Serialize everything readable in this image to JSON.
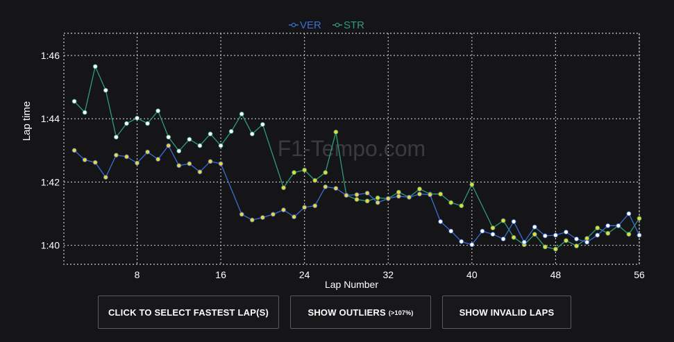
{
  "chart_data": {
    "type": "line",
    "xlabel": "Lap Number",
    "ylabel": "Lap time",
    "xlim": [
      1,
      56
    ],
    "ylim": [
      99.4,
      106.7
    ],
    "x_ticks": [
      8,
      16,
      24,
      32,
      40,
      48,
      56
    ],
    "y_ticks": [
      {
        "value": 100,
        "label": "1:40"
      },
      {
        "value": 102,
        "label": "1:42"
      },
      {
        "value": 104,
        "label": "1:44"
      },
      {
        "value": 106,
        "label": "1:46"
      }
    ],
    "grid": true,
    "legend": "top-center",
    "watermark": "F1-Tempo.com",
    "series": [
      {
        "name": "VER",
        "color": "#3b6fd6",
        "points": [
          {
            "x": 2,
            "y": 103.0,
            "c": "#f2d33a"
          },
          {
            "x": 3,
            "y": 102.7,
            "c": "#f2d33a"
          },
          {
            "x": 4,
            "y": 102.62,
            "c": "#f2d33a"
          },
          {
            "x": 5,
            "y": 102.15,
            "c": "#f2d33a"
          },
          {
            "x": 6,
            "y": 102.85,
            "c": "#f2d33a"
          },
          {
            "x": 7,
            "y": 102.8,
            "c": "#f2d33a"
          },
          {
            "x": 8,
            "y": 102.6,
            "c": "#f2d33a"
          },
          {
            "x": 9,
            "y": 102.95,
            "c": "#f2d33a"
          },
          {
            "x": 10,
            "y": 102.72,
            "c": "#f2d33a"
          },
          {
            "x": 11,
            "y": 103.15,
            "c": "#f2d33a"
          },
          {
            "x": 12,
            "y": 102.52,
            "c": "#f2d33a"
          },
          {
            "x": 13,
            "y": 102.58,
            "c": "#f2d33a"
          },
          {
            "x": 14,
            "y": 102.32,
            "c": "#f2d33a"
          },
          {
            "x": 15,
            "y": 102.65,
            "c": "#f2d33a"
          },
          {
            "x": 16,
            "y": 102.58,
            "c": "#f2d33a"
          },
          {
            "x": 18,
            "y": 100.98,
            "c": "#f2d33a"
          },
          {
            "x": 19,
            "y": 100.8,
            "c": "#f2d33a"
          },
          {
            "x": 20,
            "y": 100.88,
            "c": "#f2d33a"
          },
          {
            "x": 21,
            "y": 100.98,
            "c": "#f2d33a"
          },
          {
            "x": 22,
            "y": 101.12,
            "c": "#f2d33a"
          },
          {
            "x": 23,
            "y": 100.9,
            "c": "#f2d33a"
          },
          {
            "x": 24,
            "y": 101.2,
            "c": "#f2d33a"
          },
          {
            "x": 25,
            "y": 101.25,
            "c": "#f2d33a"
          },
          {
            "x": 26,
            "y": 101.85,
            "c": "#f2d33a"
          },
          {
            "x": 27,
            "y": 101.8,
            "c": "#f2d33a"
          },
          {
            "x": 28,
            "y": 101.58,
            "c": "#f2d33a"
          },
          {
            "x": 29,
            "y": 101.6,
            "c": "#f2d33a"
          },
          {
            "x": 30,
            "y": 101.65,
            "c": "#f2d33a"
          },
          {
            "x": 31,
            "y": 101.35,
            "c": "#f2d33a"
          },
          {
            "x": 32,
            "y": 101.48,
            "c": "#f2d33a"
          },
          {
            "x": 33,
            "y": 101.55,
            "c": "#f2d33a"
          },
          {
            "x": 34,
            "y": 101.52,
            "c": "#f2d33a"
          },
          {
            "x": 35,
            "y": 101.62,
            "c": "#f2d33a"
          },
          {
            "x": 36,
            "y": 101.6,
            "c": "#f2d33a"
          },
          {
            "x": 37,
            "y": 100.75,
            "c": "#ffffff"
          },
          {
            "x": 38,
            "y": 100.45,
            "c": "#ffffff"
          },
          {
            "x": 39,
            "y": 100.12,
            "c": "#ffffff"
          },
          {
            "x": 40,
            "y": 100.02,
            "c": "#ffffff"
          },
          {
            "x": 41,
            "y": 100.45,
            "c": "#ffffff"
          },
          {
            "x": 42,
            "y": 100.35,
            "c": "#ffffff"
          },
          {
            "x": 43,
            "y": 100.2,
            "c": "#ffffff"
          },
          {
            "x": 44,
            "y": 100.75,
            "c": "#ffffff"
          },
          {
            "x": 45,
            "y": 100.1,
            "c": "#ffffff"
          },
          {
            "x": 46,
            "y": 100.58,
            "c": "#ffffff"
          },
          {
            "x": 47,
            "y": 100.3,
            "c": "#ffffff"
          },
          {
            "x": 48,
            "y": 100.32,
            "c": "#ffffff"
          },
          {
            "x": 49,
            "y": 100.42,
            "c": "#ffffff"
          },
          {
            "x": 50,
            "y": 100.2,
            "c": "#ffffff"
          },
          {
            "x": 51,
            "y": 100.1,
            "c": "#ffffff"
          },
          {
            "x": 52,
            "y": 100.32,
            "c": "#ffffff"
          },
          {
            "x": 53,
            "y": 100.62,
            "c": "#ffffff"
          },
          {
            "x": 54,
            "y": 100.62,
            "c": "#ffffff"
          },
          {
            "x": 55,
            "y": 101.0,
            "c": "#ffffff"
          },
          {
            "x": 56,
            "y": 100.32,
            "c": "#ffffff"
          }
        ]
      },
      {
        "name": "STR",
        "color": "#2f9d78",
        "points": [
          {
            "x": 2,
            "y": 104.55,
            "c": "#ffffff"
          },
          {
            "x": 3,
            "y": 104.2,
            "c": "#ffffff"
          },
          {
            "x": 4,
            "y": 105.65,
            "c": "#ffffff"
          },
          {
            "x": 5,
            "y": 104.9,
            "c": "#ffffff"
          },
          {
            "x": 6,
            "y": 103.42,
            "c": "#ffffff"
          },
          {
            "x": 7,
            "y": 103.85,
            "c": "#ffffff"
          },
          {
            "x": 8,
            "y": 104.02,
            "c": "#ffffff"
          },
          {
            "x": 9,
            "y": 103.85,
            "c": "#ffffff"
          },
          {
            "x": 10,
            "y": 104.25,
            "c": "#ffffff"
          },
          {
            "x": 11,
            "y": 103.42,
            "c": "#ffffff"
          },
          {
            "x": 12,
            "y": 102.98,
            "c": "#ffffff"
          },
          {
            "x": 13,
            "y": 103.35,
            "c": "#ffffff"
          },
          {
            "x": 14,
            "y": 103.15,
            "c": "#ffffff"
          },
          {
            "x": 15,
            "y": 103.52,
            "c": "#ffffff"
          },
          {
            "x": 16,
            "y": 103.15,
            "c": "#ffffff"
          },
          {
            "x": 17,
            "y": 103.6,
            "c": "#ffffff"
          },
          {
            "x": 18,
            "y": 104.15,
            "c": "#ffffff"
          },
          {
            "x": 19,
            "y": 103.52,
            "c": "#ffffff"
          },
          {
            "x": 20,
            "y": 103.82,
            "c": "#ffffff"
          },
          {
            "x": 22,
            "y": 101.82,
            "c": "#f2d33a"
          },
          {
            "x": 23,
            "y": 102.3,
            "c": "#f2d33a"
          },
          {
            "x": 24,
            "y": 102.38,
            "c": "#f2d33a"
          },
          {
            "x": 25,
            "y": 102.05,
            "c": "#f2d33a"
          },
          {
            "x": 26,
            "y": 102.3,
            "c": "#f2d33a"
          },
          {
            "x": 27,
            "y": 103.58,
            "c": "#f2d33a"
          },
          {
            "x": 28,
            "y": 101.58,
            "c": "#f2d33a"
          },
          {
            "x": 29,
            "y": 101.45,
            "c": "#f2d33a"
          },
          {
            "x": 30,
            "y": 101.4,
            "c": "#f2d33a"
          },
          {
            "x": 31,
            "y": 101.5,
            "c": "#f2d33a"
          },
          {
            "x": 32,
            "y": 101.48,
            "c": "#f2d33a"
          },
          {
            "x": 33,
            "y": 101.68,
            "c": "#f2d33a"
          },
          {
            "x": 34,
            "y": 101.52,
            "c": "#f2d33a"
          },
          {
            "x": 35,
            "y": 101.78,
            "c": "#f2d33a"
          },
          {
            "x": 36,
            "y": 101.62,
            "c": "#f2d33a"
          },
          {
            "x": 37,
            "y": 101.62,
            "c": "#f2d33a"
          },
          {
            "x": 38,
            "y": 101.35,
            "c": "#f2d33a"
          },
          {
            "x": 39,
            "y": 101.25,
            "c": "#f2d33a"
          },
          {
            "x": 40,
            "y": 101.92,
            "c": "#f2d33a"
          },
          {
            "x": 42,
            "y": 100.55,
            "c": "#f2d33a"
          },
          {
            "x": 43,
            "y": 100.78,
            "c": "#f2d33a"
          },
          {
            "x": 44,
            "y": 100.25,
            "c": "#f2d33a"
          },
          {
            "x": 45,
            "y": 100.02,
            "c": "#f2d33a"
          },
          {
            "x": 46,
            "y": 100.35,
            "c": "#f2d33a"
          },
          {
            "x": 47,
            "y": 99.95,
            "c": "#f2d33a"
          },
          {
            "x": 48,
            "y": 99.88,
            "c": "#f2d33a"
          },
          {
            "x": 49,
            "y": 100.15,
            "c": "#f2d33a"
          },
          {
            "x": 50,
            "y": 99.98,
            "c": "#f2d33a"
          },
          {
            "x": 51,
            "y": 100.22,
            "c": "#f2d33a"
          },
          {
            "x": 52,
            "y": 100.55,
            "c": "#f2d33a"
          },
          {
            "x": 53,
            "y": 100.38,
            "c": "#f2d33a"
          },
          {
            "x": 54,
            "y": 100.62,
            "c": "#f2d33a"
          },
          {
            "x": 55,
            "y": 100.35,
            "c": "#f2d33a"
          },
          {
            "x": 56,
            "y": 100.85,
            "c": "#f2d33a"
          }
        ]
      }
    ]
  },
  "buttons": {
    "fastest": "CLICK TO SELECT FASTEST LAP(S)",
    "outliers": "SHOW OUTLIERS",
    "outliers_note": "(>107%)",
    "invalid": "SHOW INVALID LAPS"
  }
}
